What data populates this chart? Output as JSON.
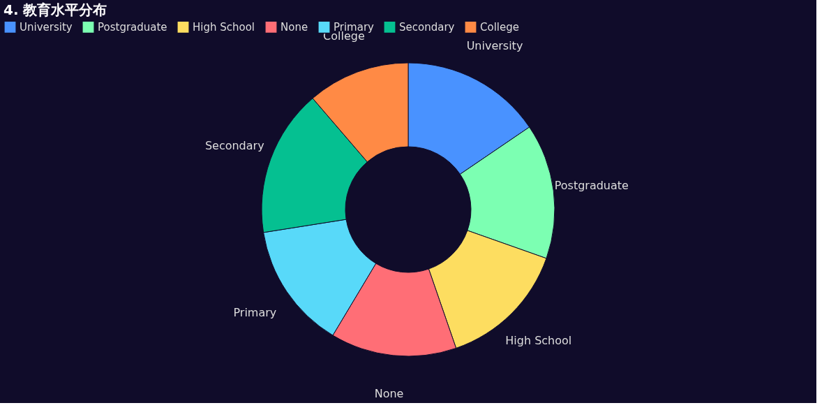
{
  "chart_data": {
    "type": "donut",
    "title": "4. 教育水平分布",
    "categories": [
      "University",
      "Postgraduate",
      "High School",
      "None",
      "Primary",
      "Secondary",
      "College"
    ],
    "values": [
      15.5,
      14.9,
      14.3,
      13.9,
      13.9,
      16.2,
      11.3
    ],
    "colors": [
      "#4992ff",
      "#7cffb2",
      "#fddd60",
      "#ff6e76",
      "#58d9f9",
      "#05c091",
      "#ff8a45"
    ],
    "legend": "top"
  }
}
